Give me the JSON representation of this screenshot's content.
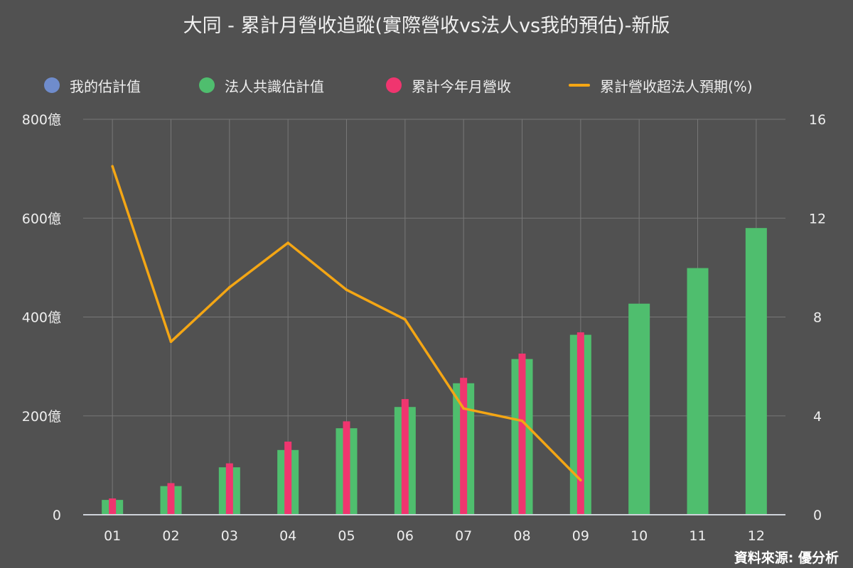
{
  "title": "大同 - 累計月營收追蹤(實際營收vs法人vs我的預估)-新版",
  "source": "資料來源: 優分析",
  "legend": [
    {
      "label": "我的估計值",
      "color": "#6f8ccc",
      "shape": "dot"
    },
    {
      "label": "法人共識估計值",
      "color": "#4fbe6e",
      "shape": "dot"
    },
    {
      "label": "累計今年月營收",
      "color": "#f0356f",
      "shape": "dot"
    },
    {
      "label": "累計營收超法人預期(%)",
      "color": "#f4a614",
      "shape": "line"
    }
  ],
  "colors": {
    "background": "#515151",
    "grid": "#777777",
    "consensus_bar": "#4fbe6e",
    "actual_bar": "#f0356f",
    "line": "#f4a614",
    "axis": "#cfd3da"
  },
  "chart_data": {
    "type": "bar",
    "categories": [
      "01",
      "02",
      "03",
      "04",
      "05",
      "06",
      "07",
      "08",
      "09",
      "10",
      "11",
      "12"
    ],
    "series": [
      {
        "name": "法人共識估計值",
        "axis": "left",
        "kind": "bar",
        "values": [
          30,
          58,
          96,
          131,
          175,
          218,
          266,
          315,
          364,
          427,
          499,
          580
        ]
      },
      {
        "name": "累計今年月營收",
        "axis": "left",
        "kind": "bar",
        "values": [
          33,
          64,
          104,
          148,
          189,
          234,
          277,
          326,
          369,
          null,
          null,
          null
        ]
      },
      {
        "name": "累計營收超法人預期(%)",
        "axis": "right",
        "kind": "line",
        "values": [
          14.1,
          7.0,
          9.2,
          11.0,
          9.1,
          7.9,
          4.3,
          3.8,
          1.4,
          null,
          null,
          null
        ]
      }
    ],
    "y_left": {
      "min": 0,
      "max": 800,
      "ticks": [
        0,
        200,
        400,
        600,
        800
      ],
      "tick_labels": [
        "0",
        "200億",
        "400億",
        "600億",
        "800億"
      ]
    },
    "y_right": {
      "min": 0,
      "max": 16,
      "ticks": [
        0,
        4,
        8,
        12,
        16
      ],
      "tick_labels": [
        "0",
        "4",
        "8",
        "12",
        "16"
      ]
    },
    "grid": true,
    "legend_position": "top"
  }
}
